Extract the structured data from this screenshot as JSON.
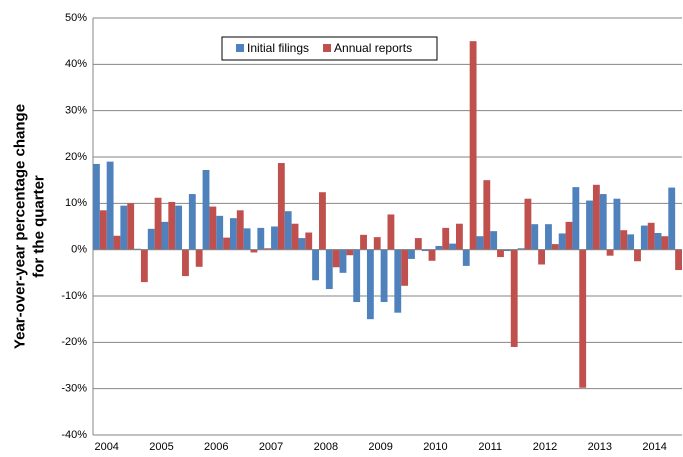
{
  "chart_data": {
    "type": "bar",
    "ylabel": [
      "Year-over-year percentage change",
      "for the quarter"
    ],
    "categories": [
      "2004",
      null,
      null,
      null,
      "2005",
      null,
      null,
      null,
      "2006",
      null,
      null,
      null,
      "2007",
      null,
      null,
      null,
      "2008",
      null,
      null,
      null,
      "2009",
      null,
      null,
      null,
      "2010",
      null,
      null,
      null,
      "2011",
      null,
      null,
      null,
      "2012",
      null,
      null,
      null,
      "2013",
      null,
      null,
      null,
      "2014",
      null,
      null
    ],
    "series": [
      {
        "name": "Initial filings",
        "color": "#4f81bd",
        "values": [
          18.5,
          19,
          9.5,
          0.2,
          4.5,
          6,
          9.5,
          12,
          17.2,
          7.3,
          6.8,
          4.6,
          4.7,
          5,
          8.3,
          2.5,
          -6.6,
          -8.5,
          -5,
          -11.3,
          -15,
          -11.3,
          -13.6,
          -2,
          -0.3,
          0.8,
          1.3,
          -3.5,
          2.9,
          4,
          -0.3,
          0.3,
          5.5,
          5.5,
          3.5,
          13.5,
          10.6,
          12,
          11,
          3.3,
          5.2,
          3.6,
          13.4
        ]
      },
      {
        "name": "Annual reports",
        "color": "#c0504d",
        "values": [
          8.5,
          3,
          10,
          -7,
          11.2,
          10.3,
          -5.7,
          -3.7,
          9.3,
          2.6,
          8.5,
          -0.6,
          0.3,
          18.7,
          5.6,
          3.7,
          12.4,
          -3.8,
          -1.2,
          3.2,
          2.7,
          7.6,
          -7.8,
          2.5,
          -2.4,
          4.7,
          5.6,
          45,
          15,
          -1.6,
          -21,
          11,
          -3.2,
          1.2,
          6,
          -29.8,
          14,
          -1.3,
          4.2,
          -2.5,
          5.8,
          2.9,
          -4.4
        ]
      }
    ],
    "ylim": [
      -40,
      50
    ],
    "yticks": [
      {
        "value": -40,
        "label": "-40%"
      },
      {
        "value": -30,
        "label": "-30%"
      },
      {
        "value": -20,
        "label": "-20%"
      },
      {
        "value": -10,
        "label": "-10%"
      },
      {
        "value": 0,
        "label": "0%"
      },
      {
        "value": 10,
        "label": "10%"
      },
      {
        "value": 20,
        "label": "20%"
      },
      {
        "value": 30,
        "label": "30%"
      },
      {
        "value": 40,
        "label": "40%"
      },
      {
        "value": 50,
        "label": "50%"
      }
    ],
    "grid": true,
    "legend": "top"
  }
}
